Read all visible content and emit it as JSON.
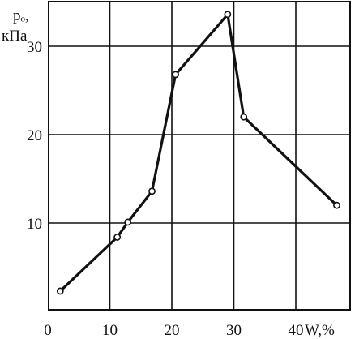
{
  "chart_data": {
    "type": "line",
    "title": "",
    "ylabel_line1": "pₒ,",
    "ylabel_line2": "кПа",
    "xlabel": "W,%",
    "xlim": [
      0,
      50
    ],
    "ylim": [
      0,
      35
    ],
    "grid": true,
    "x_ticks": [
      0,
      10,
      20,
      30,
      40
    ],
    "x_tick_labels": [
      "0",
      "10",
      "20",
      "30",
      "40"
    ],
    "y_ticks": [
      10,
      20,
      30
    ],
    "y_tick_labels": [
      "10",
      "20",
      "30"
    ],
    "series": [
      {
        "x": [
          2.0,
          11.2,
          12.9,
          16.8,
          20.6,
          29.0,
          31.6,
          46.6
        ],
        "y": [
          2.3,
          8.4,
          10.1,
          13.6,
          26.8,
          33.6,
          22.0,
          12.0
        ]
      }
    ],
    "colors": {
      "line": "#111111",
      "grid": "#111111",
      "marker_fill": "#ffffff"
    }
  }
}
